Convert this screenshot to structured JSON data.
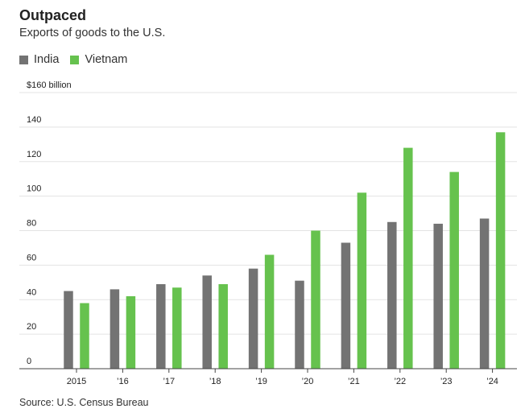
{
  "header": {
    "title": "Outpaced",
    "subtitle": "Exports of goods to the U.S."
  },
  "legend": [
    {
      "label": "India",
      "color": "#737373"
    },
    {
      "label": "Vietnam",
      "color": "#66c24e"
    }
  ],
  "footer": {
    "source": "Source: U.S. Census Bureau"
  },
  "chart_data": {
    "type": "bar",
    "title": "Outpaced",
    "subtitle": "Exports of goods to the U.S.",
    "categories": [
      "2015",
      "’16",
      "’17",
      "’18",
      "’19",
      "’20",
      "’21",
      "’22",
      "’23",
      "’24"
    ],
    "series": [
      {
        "name": "India",
        "color": "#737373",
        "values": [
          45,
          46,
          49,
          54,
          58,
          51,
          73,
          85,
          84,
          87
        ]
      },
      {
        "name": "Vietnam",
        "color": "#66c24e",
        "values": [
          38,
          42,
          47,
          49,
          66,
          80,
          102,
          128,
          114,
          137
        ]
      }
    ],
    "yticks": [
      0,
      20,
      40,
      60,
      80,
      100,
      120,
      140,
      160
    ],
    "ytick_labels": [
      "0",
      "20",
      "40",
      "60",
      "80",
      "100",
      "120",
      "140",
      "$160 billion"
    ],
    "ylim": [
      0,
      160
    ],
    "grid": true,
    "legend_position": "top-left"
  }
}
